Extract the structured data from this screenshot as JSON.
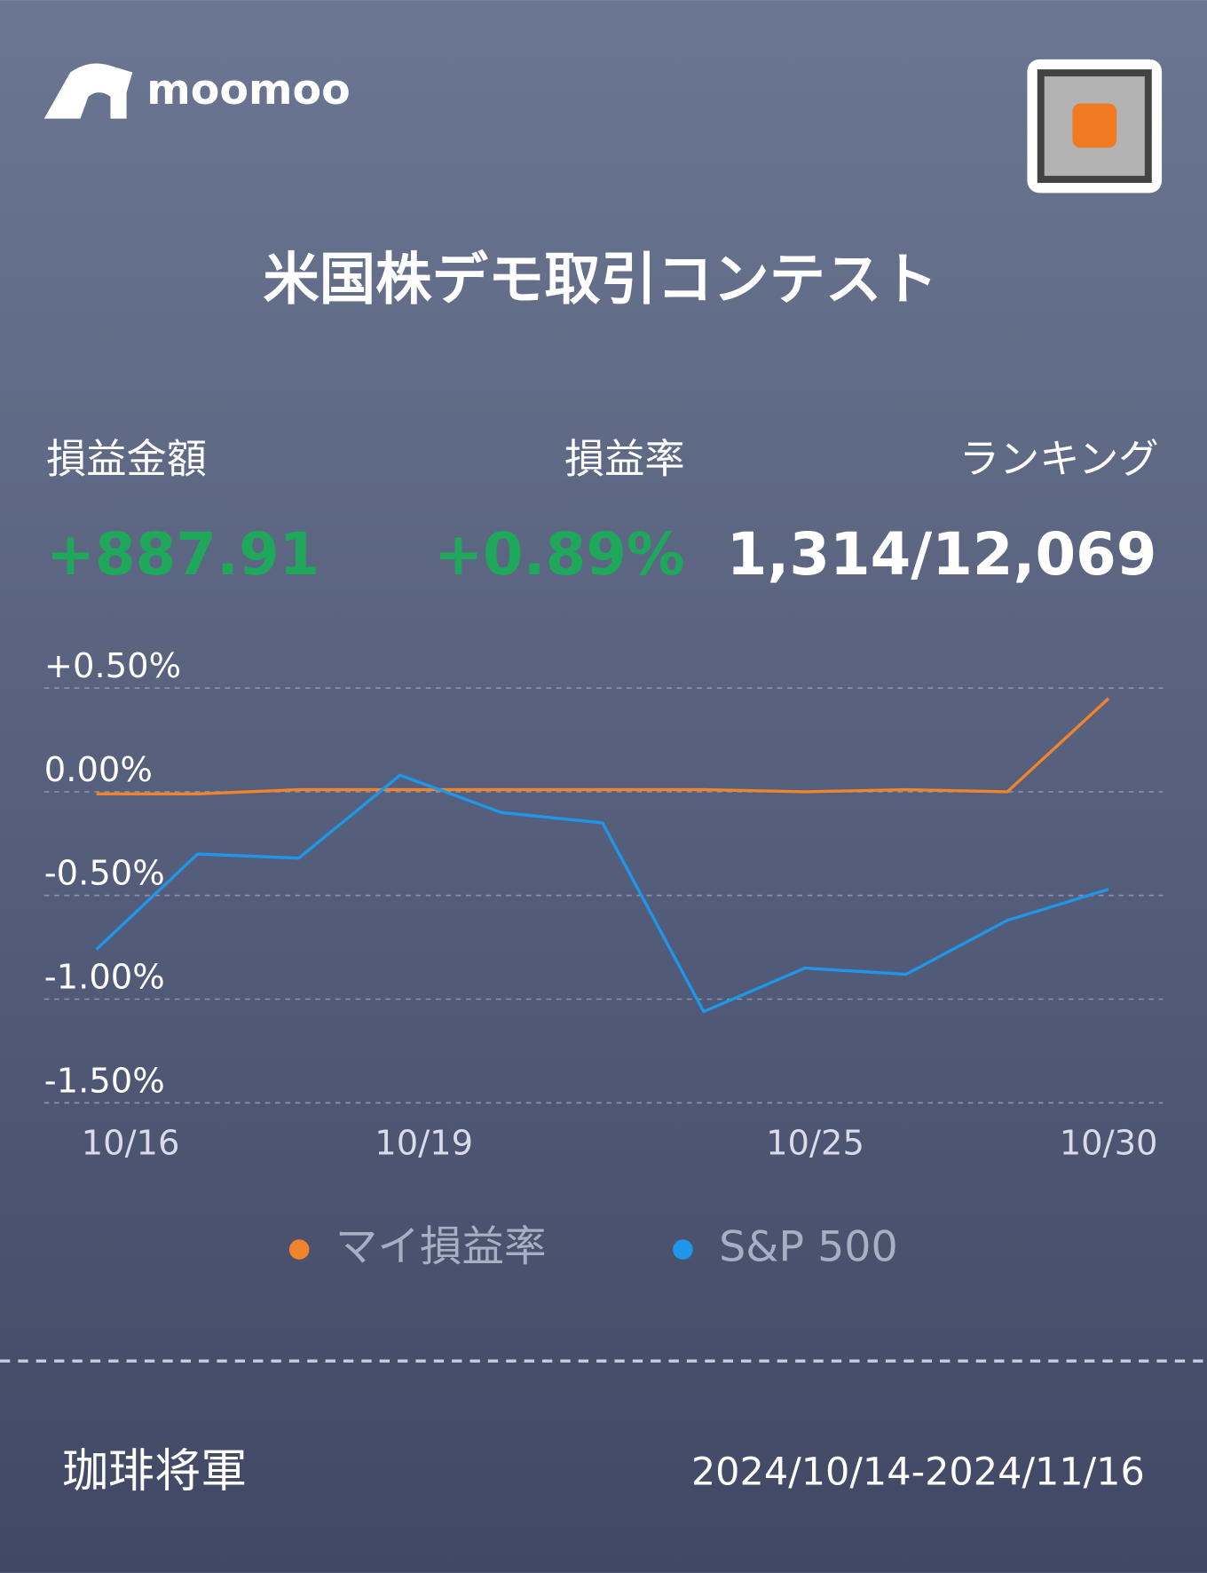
{
  "brand": "moomoo",
  "title": "米国株デモ取引コンテスト",
  "stats": [
    {
      "label": "損益金額",
      "value": "+887.91"
    },
    {
      "label": "損益率",
      "value": "+0.89%"
    },
    {
      "label": "ランキング",
      "value": "1,314/12,069"
    }
  ],
  "chart_data": {
    "type": "line",
    "categories": [
      "10/16",
      null,
      null,
      "10/19",
      null,
      null,
      null,
      "10/25",
      null,
      null,
      "10/30"
    ],
    "series": [
      {
        "name": "マイ損益率",
        "color": "#f0842c",
        "values": [
          -0.01,
          -0.01,
          0.01,
          0.01,
          0.01,
          0.01,
          0.01,
          0.0,
          0.01,
          0.0,
          0.45
        ]
      },
      {
        "name": "S&P 500",
        "color": "#1f96e8",
        "values": [
          -0.76,
          -0.3,
          -0.32,
          0.08,
          -0.1,
          -0.15,
          -1.06,
          -0.85,
          -0.88,
          -0.62,
          -0.47
        ]
      }
    ],
    "ylim": [
      -1.5,
      0.5
    ],
    "yticks": [
      {
        "value": 0.5,
        "label": "+0.50%"
      },
      {
        "value": 0,
        "label": "0.00%"
      },
      {
        "value": -0.5,
        "label": "-0.50%"
      },
      {
        "value": -1,
        "label": "-1.00%"
      },
      {
        "value": -1.5,
        "label": "-1.50%"
      }
    ],
    "grid": true
  },
  "footer": {
    "user": "珈琲将軍",
    "period": "2024/10/14-2024/11/16"
  }
}
